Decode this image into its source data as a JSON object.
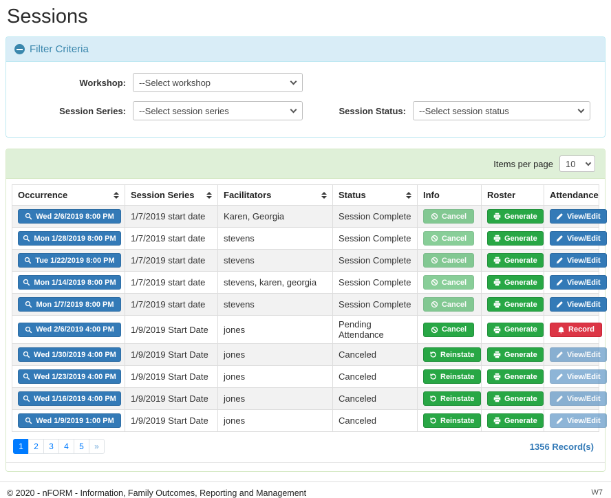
{
  "page": {
    "title": "Sessions"
  },
  "filter": {
    "title": "Filter Criteria",
    "workshop": {
      "label": "Workshop:",
      "value": "--Select workshop"
    },
    "session_series": {
      "label": "Session Series:",
      "value": "--Select session series"
    },
    "session_status": {
      "label": "Session Status:",
      "value": "--Select session status"
    }
  },
  "table": {
    "items_per_page_label": "Items per page",
    "items_per_page_value": "10",
    "columns": [
      {
        "label": "Occurrence",
        "sortable": true
      },
      {
        "label": "Session Series",
        "sortable": true
      },
      {
        "label": "Facilitators",
        "sortable": true
      },
      {
        "label": "Status",
        "sortable": true
      },
      {
        "label": "Info",
        "sortable": false
      },
      {
        "label": "Roster",
        "sortable": false
      },
      {
        "label": "Attendance",
        "sortable": false
      }
    ],
    "rows": [
      {
        "occurrence": "Wed 2/6/2019 8:00 PM",
        "session_series": "1/7/2019 start date",
        "facilitators": "Karen, Georgia",
        "status": "Session Complete",
        "info": {
          "label": "Cancel",
          "icon": "ban-icon",
          "variant": "success",
          "disabled": true
        },
        "roster": {
          "label": "Generate",
          "icon": "printer-icon",
          "variant": "success",
          "disabled": false
        },
        "attendance": {
          "label": "View/Edit",
          "icon": "pencil-icon",
          "variant": "primary",
          "disabled": false
        }
      },
      {
        "occurrence": "Mon 1/28/2019 8:00 PM",
        "session_series": "1/7/2019 start date",
        "facilitators": "stevens",
        "status": "Session Complete",
        "info": {
          "label": "Cancel",
          "icon": "ban-icon",
          "variant": "success",
          "disabled": true
        },
        "roster": {
          "label": "Generate",
          "icon": "printer-icon",
          "variant": "success",
          "disabled": false
        },
        "attendance": {
          "label": "View/Edit",
          "icon": "pencil-icon",
          "variant": "primary",
          "disabled": false
        }
      },
      {
        "occurrence": "Tue 1/22/2019 8:00 PM",
        "session_series": "1/7/2019 start date",
        "facilitators": "stevens",
        "status": "Session Complete",
        "info": {
          "label": "Cancel",
          "icon": "ban-icon",
          "variant": "success",
          "disabled": true
        },
        "roster": {
          "label": "Generate",
          "icon": "printer-icon",
          "variant": "success",
          "disabled": false
        },
        "attendance": {
          "label": "View/Edit",
          "icon": "pencil-icon",
          "variant": "primary",
          "disabled": false
        }
      },
      {
        "occurrence": "Mon 1/14/2019 8:00 PM",
        "session_series": "1/7/2019 start date",
        "facilitators": "stevens, karen, georgia",
        "status": "Session Complete",
        "info": {
          "label": "Cancel",
          "icon": "ban-icon",
          "variant": "success",
          "disabled": true
        },
        "roster": {
          "label": "Generate",
          "icon": "printer-icon",
          "variant": "success",
          "disabled": false
        },
        "attendance": {
          "label": "View/Edit",
          "icon": "pencil-icon",
          "variant": "primary",
          "disabled": false
        }
      },
      {
        "occurrence": "Mon 1/7/2019 8:00 PM",
        "session_series": "1/7/2019 start date",
        "facilitators": "stevens",
        "status": "Session Complete",
        "info": {
          "label": "Cancel",
          "icon": "ban-icon",
          "variant": "success",
          "disabled": true
        },
        "roster": {
          "label": "Generate",
          "icon": "printer-icon",
          "variant": "success",
          "disabled": false
        },
        "attendance": {
          "label": "View/Edit",
          "icon": "pencil-icon",
          "variant": "primary",
          "disabled": false
        }
      },
      {
        "occurrence": "Wed 2/6/2019 4:00 PM",
        "session_series": "1/9/2019 Start Date",
        "facilitators": "jones",
        "status": "Pending Attendance",
        "info": {
          "label": "Cancel",
          "icon": "ban-icon",
          "variant": "success",
          "disabled": false
        },
        "roster": {
          "label": "Generate",
          "icon": "printer-icon",
          "variant": "success",
          "disabled": false
        },
        "attendance": {
          "label": "Record",
          "icon": "bell-icon",
          "variant": "danger",
          "disabled": false
        }
      },
      {
        "occurrence": "Wed 1/30/2019 4:00 PM",
        "session_series": "1/9/2019 Start Date",
        "facilitators": "jones",
        "status": "Canceled",
        "info": {
          "label": "Reinstate",
          "icon": "undo-icon",
          "variant": "success",
          "disabled": false
        },
        "roster": {
          "label": "Generate",
          "icon": "printer-icon",
          "variant": "success",
          "disabled": false
        },
        "attendance": {
          "label": "View/Edit",
          "icon": "pencil-icon",
          "variant": "primary",
          "disabled": true
        }
      },
      {
        "occurrence": "Wed 1/23/2019 4:00 PM",
        "session_series": "1/9/2019 Start Date",
        "facilitators": "jones",
        "status": "Canceled",
        "info": {
          "label": "Reinstate",
          "icon": "undo-icon",
          "variant": "success",
          "disabled": false
        },
        "roster": {
          "label": "Generate",
          "icon": "printer-icon",
          "variant": "success",
          "disabled": false
        },
        "attendance": {
          "label": "View/Edit",
          "icon": "pencil-icon",
          "variant": "primary",
          "disabled": true
        }
      },
      {
        "occurrence": "Wed 1/16/2019 4:00 PM",
        "session_series": "1/9/2019 Start Date",
        "facilitators": "jones",
        "status": "Canceled",
        "info": {
          "label": "Reinstate",
          "icon": "undo-icon",
          "variant": "success",
          "disabled": false
        },
        "roster": {
          "label": "Generate",
          "icon": "printer-icon",
          "variant": "success",
          "disabled": false
        },
        "attendance": {
          "label": "View/Edit",
          "icon": "pencil-icon",
          "variant": "primary",
          "disabled": true
        }
      },
      {
        "occurrence": "Wed 1/9/2019 1:00 PM",
        "session_series": "1/9/2019 Start Date",
        "facilitators": "jones",
        "status": "Canceled",
        "info": {
          "label": "Reinstate",
          "icon": "undo-icon",
          "variant": "success",
          "disabled": false
        },
        "roster": {
          "label": "Generate",
          "icon": "printer-icon",
          "variant": "success",
          "disabled": false
        },
        "attendance": {
          "label": "View/Edit",
          "icon": "pencil-icon",
          "variant": "primary",
          "disabled": true
        }
      }
    ],
    "pagination": {
      "pages": [
        "1",
        "2",
        "3",
        "4",
        "5",
        "»"
      ],
      "active_index": 0
    },
    "record_count": "1356 Record(s)"
  },
  "colors": {
    "accent_blue": "#337ab7",
    "success_green": "#28a745",
    "danger_red": "#dc3545",
    "filter_header_bg": "#d9edf7",
    "table_header_bg": "#dff0d8",
    "pagination_blue": "#007bff"
  },
  "footer": {
    "copyright": "© 2020 - nFORM - Information, Family Outcomes, Reporting and Management",
    "version": "W7"
  }
}
